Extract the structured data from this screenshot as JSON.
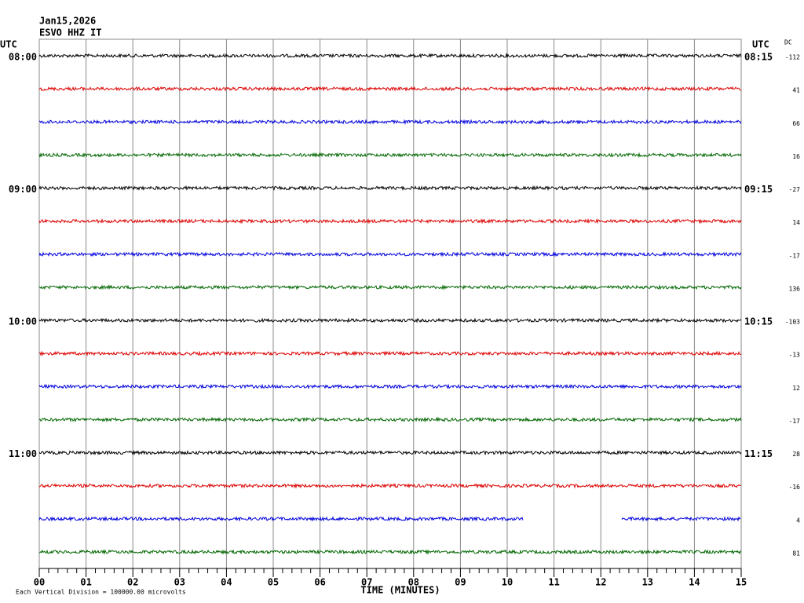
{
  "chart_data": {
    "type": "helicorder",
    "title": "Jan15,2026",
    "subtitle": "ESVO HHZ IT",
    "left_axis_label": "UTC",
    "right_axis_label": "UTC",
    "dc_label": "DC",
    "xlabel": "TIME (MINUTES)",
    "footnote": "Each Vertical Division = 100000.00 microvolts",
    "xlim": [
      0,
      15
    ],
    "xticks": [
      {
        "value": 0,
        "label": "00"
      },
      {
        "value": 1,
        "label": "01"
      },
      {
        "value": 2,
        "label": "02"
      },
      {
        "value": 3,
        "label": "03"
      },
      {
        "value": 4,
        "label": "04"
      },
      {
        "value": 5,
        "label": "05"
      },
      {
        "value": 6,
        "label": "06"
      },
      {
        "value": 7,
        "label": "07"
      },
      {
        "value": 8,
        "label": "08"
      },
      {
        "value": 9,
        "label": "09"
      },
      {
        "value": 10,
        "label": "10"
      },
      {
        "value": 11,
        "label": "11"
      },
      {
        "value": 12,
        "label": "12"
      },
      {
        "value": 13,
        "label": "13"
      },
      {
        "value": 14,
        "label": "14"
      },
      {
        "value": 15,
        "label": "15"
      }
    ],
    "grid": true,
    "series": [
      {
        "color": "#000000",
        "dc": -112,
        "label": "08:00",
        "right_label": "08:15"
      },
      {
        "color": "#dd0000",
        "dc": 41
      },
      {
        "color": "#0000dd",
        "dc": 66
      },
      {
        "color": "#006600",
        "dc": 16
      },
      {
        "color": "#000000",
        "dc": -27,
        "label": "09:00",
        "right_label": "09:15"
      },
      {
        "color": "#dd0000",
        "dc": 14
      },
      {
        "color": "#0000dd",
        "dc": -17
      },
      {
        "color": "#006600",
        "dc": 136
      },
      {
        "color": "#000000",
        "dc": -103,
        "label": "10:00",
        "right_label": "10:15"
      },
      {
        "color": "#dd0000",
        "dc": -13
      },
      {
        "color": "#0000dd",
        "dc": 12
      },
      {
        "color": "#006600",
        "dc": -17
      },
      {
        "color": "#000000",
        "dc": 28,
        "label": "11:00",
        "right_label": "11:15"
      },
      {
        "color": "#dd0000",
        "dc": -16
      },
      {
        "color": "#0000dd",
        "dc": 4,
        "gap": [
          10.35,
          12.45
        ]
      },
      {
        "color": "#006600",
        "dc": 81
      }
    ]
  }
}
